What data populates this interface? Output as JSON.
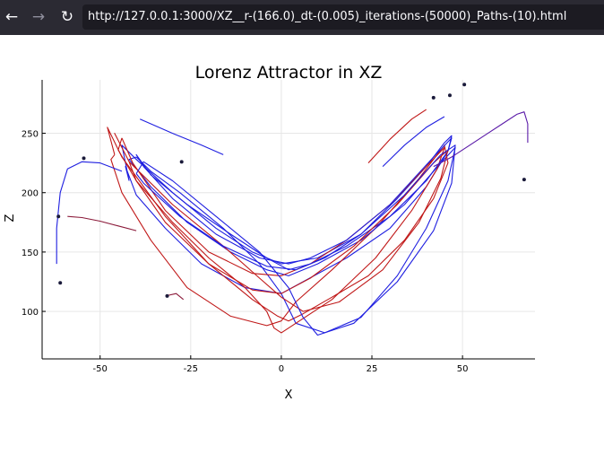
{
  "browser": {
    "back_icon": "arrow-left-icon",
    "forward_icon": "arrow-right-icon",
    "reload_icon": "reload-icon",
    "url": "http://127.0.0.1:3000/XZ__r-(166.0)_dt-(0.005)_iterations-(50000)_Paths-(10).html",
    "toolbar_color": "#2b2a33",
    "urlbar_color": "#1c1b22"
  },
  "chart_data": {
    "type": "line",
    "title": "Lorenz Attractor in XZ",
    "xlabel": "X",
    "ylabel": "Z",
    "xlim": [
      -66,
      70
    ],
    "ylim": [
      60,
      295
    ],
    "x_ticks": [
      -50,
      -25,
      0,
      25,
      50
    ],
    "x_tick_labels": [
      "-50",
      "-25",
      "0",
      "25",
      "50"
    ],
    "y_ticks": [
      100,
      150,
      200,
      250
    ],
    "y_tick_labels": [
      "100",
      "150",
      "200",
      "250"
    ],
    "grid": true,
    "legend": "none",
    "colors": {
      "blue": "#1f1fe0",
      "red": "#c01818",
      "purple": "#5a1aa8",
      "maroon": "#8b1a3a",
      "marker": "#1a1a3a"
    },
    "series": [
      {
        "color_key": "blue",
        "x": [
          -42.0,
          -44.0,
          -40.0,
          -30.0,
          -18.0,
          -8.0,
          0.0,
          10.0,
          22.0,
          32.0,
          40.0,
          45.0,
          47.0,
          46.0,
          40.0,
          30.0,
          18.0,
          6.0,
          0.0,
          -10.0,
          -22.0,
          -32.0,
          -40.0,
          -43.0,
          -42.0
        ],
        "y": [
          210.0,
          240.0,
          228.0,
          200.0,
          170.0,
          150.0,
          140.0,
          145.0,
          165.0,
          195.0,
          222.0,
          242.0,
          248.0,
          235.0,
          205.0,
          170.0,
          145.0,
          125.0,
          115.0,
          120.0,
          140.0,
          170.0,
          198.0,
          222.0,
          210.0
        ]
      },
      {
        "color_key": "red",
        "x": [
          -46.0,
          -48.0,
          -44.0,
          -32.0,
          -20.0,
          -8.0,
          -1.0,
          2.0,
          6.0,
          14.0,
          24.0,
          34.0,
          42.0,
          46.0,
          45.0,
          38.0,
          26.0,
          14.0,
          4.0,
          0.0,
          -4.0,
          -14.0,
          -26.0,
          -36.0,
          -44.0,
          -47.0,
          -46.0
        ],
        "y": [
          232.0,
          255.0,
          230.0,
          180.0,
          140.0,
          110.0,
          96.0,
          92.0,
          98.0,
          112.0,
          130.0,
          160.0,
          195.0,
          225.0,
          240.0,
          212.0,
          170.0,
          135.0,
          108.0,
          92.0,
          88.0,
          96.0,
          120.0,
          160.0,
          200.0,
          228.0,
          232.0
        ]
      },
      {
        "color_key": "blue",
        "x": [
          -40.0,
          -36.0,
          -28.0,
          -16.0,
          -6.0,
          0.0,
          4.0,
          12.0,
          22.0,
          32.0,
          40.0,
          46.0,
          48.0,
          44.0,
          34.0,
          22.0,
          10.0,
          2.0,
          -4.0,
          -14.0,
          -26.0,
          -36.0,
          -42.0,
          -40.0
        ],
        "y": [
          230.0,
          218.0,
          200.0,
          170.0,
          140.0,
          115.0,
          90.0,
          82.0,
          95.0,
          130.0,
          170.0,
          210.0,
          238.0,
          225.0,
          190.0,
          160.0,
          140.0,
          130.0,
          135.0,
          150.0,
          175.0,
          205.0,
          228.0,
          230.0
        ]
      },
      {
        "color_key": "red",
        "x": [
          -44.0,
          -45.0,
          -40.0,
          -30.0,
          -20.0,
          -10.0,
          -4.0,
          -2.0,
          0.0,
          4.0,
          14.0,
          26.0,
          36.0,
          43.0,
          45.0,
          40.0,
          30.0,
          18.0,
          8.0,
          0.0,
          -8.0,
          -20.0,
          -32.0,
          -41.0,
          -44.0
        ],
        "y": [
          246.0,
          236.0,
          210.0,
          175.0,
          145.0,
          120.0,
          100.0,
          86.0,
          82.0,
          90.0,
          110.0,
          145.0,
          185.0,
          220.0,
          238.0,
          222.0,
          190.0,
          160.0,
          140.0,
          130.0,
          132.0,
          150.0,
          185.0,
          225.0,
          246.0
        ]
      },
      {
        "color_key": "blue",
        "x": [
          -38.0,
          -40.0,
          -36.0,
          -26.0,
          -14.0,
          -4.0,
          2.0,
          8.0,
          18.0,
          30.0,
          40.0,
          46.0,
          47.0,
          42.0,
          30.0,
          18.0,
          8.0,
          2.0,
          -6.0,
          -18.0,
          -30.0,
          -38.0
        ],
        "y": [
          222.0,
          232.0,
          215.0,
          190.0,
          165.0,
          145.0,
          135.0,
          140.0,
          155.0,
          180.0,
          210.0,
          235.0,
          246.0,
          230.0,
          190.0,
          160.0,
          145.0,
          140.0,
          145.0,
          165.0,
          195.0,
          222.0
        ]
      },
      {
        "color_key": "red",
        "x": [
          -42.0,
          -46.0,
          -42.0,
          -30.0,
          -16.0,
          -6.0,
          0.0,
          6.0,
          16.0,
          28.0,
          38.0,
          44.0,
          46.0,
          42.0,
          32.0,
          20.0,
          8.0,
          0.0,
          -8.0,
          -20.0,
          -32.0,
          -40.0,
          -42.0
        ],
        "y": [
          226.0,
          250.0,
          226.0,
          190.0,
          155.0,
          128.0,
          112.0,
          100.0,
          108.0,
          135.0,
          175.0,
          212.0,
          236.0,
          225.0,
          190.0,
          155.0,
          128.0,
          115.0,
          118.0,
          140.0,
          175.0,
          210.0,
          226.0
        ]
      },
      {
        "color_key": "blue",
        "x": [
          -40.0,
          -38.0,
          -30.0,
          -18.0,
          -6.0,
          2.0,
          6.0,
          10.0,
          20.0,
          32.0,
          42.0,
          47.0,
          48.0,
          44.0,
          34.0,
          22.0,
          12.0,
          4.0,
          -4.0,
          -16.0,
          -28.0,
          -38.0,
          -40.0
        ],
        "y": [
          216.0,
          226.0,
          210.0,
          180.0,
          150.0,
          120.0,
          95.0,
          80.0,
          90.0,
          125.0,
          168.0,
          208.0,
          240.0,
          232.0,
          198.0,
          165.0,
          145.0,
          135.0,
          138.0,
          155.0,
          180.0,
          208.0,
          216.0
        ]
      },
      {
        "color_key": "purple",
        "x": [
          42.0,
          47.0,
          52.0,
          57.0,
          61.0,
          65.0,
          67.0,
          68.0,
          68.0
        ],
        "y": [
          222.0,
          230.0,
          240.0,
          250.0,
          258.0,
          266.0,
          268.0,
          258.0,
          242.0
        ]
      },
      {
        "color_key": "blue",
        "x": [
          -62.0,
          -62.0,
          -61.0,
          -59.0,
          -55.0,
          -50.0,
          -44.0
        ],
        "y": [
          140.0,
          170.0,
          200.0,
          220.0,
          226.0,
          225.0,
          218.0
        ]
      },
      {
        "color_key": "blue",
        "x": [
          -39.0,
          -36.0,
          -30.0,
          -22.0,
          -16.0
        ],
        "y": [
          262.0,
          258.0,
          250.0,
          240.0,
          232.0
        ]
      },
      {
        "color_key": "maroon",
        "x": [
          -59.0,
          -55.0,
          -50.0,
          -45.0,
          -40.0
        ],
        "y": [
          180.0,
          179.0,
          176.0,
          172.0,
          168.0
        ]
      },
      {
        "color_key": "maroon",
        "x": [
          -32.0,
          -29.0,
          -27.0
        ],
        "y": [
          113.0,
          115.0,
          110.0
        ]
      },
      {
        "color_key": "red",
        "x": [
          24.0,
          30.0,
          36.0,
          40.0
        ],
        "y": [
          225.0,
          245.0,
          262.0,
          270.0
        ]
      },
      {
        "color_key": "blue",
        "x": [
          28.0,
          34.0,
          40.0,
          45.0
        ],
        "y": [
          222.0,
          240.0,
          255.0,
          264.0
        ]
      }
    ],
    "markers": {
      "x": [
        -61.5,
        -61.0,
        -54.5,
        -27.5,
        -31.5,
        42.0,
        46.5,
        50.5,
        67.0
      ],
      "y": [
        180.0,
        124.0,
        229.0,
        226.0,
        113.0,
        280.0,
        282.0,
        291.0,
        211.0
      ]
    }
  }
}
